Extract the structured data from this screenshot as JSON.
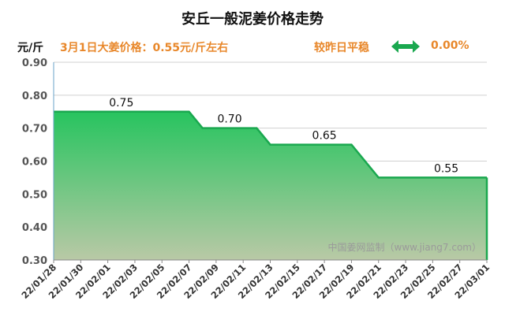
{
  "header": {
    "title": "安丘一般泥姜价格走势",
    "unit": "元/斤",
    "today_text": "3月1日大姜价格：0.55元/斤左右",
    "trend_text": "较昨日平稳",
    "trend_value": "0.00%",
    "trend_icon": "double-arrow-icon",
    "accent_color": "#e8872a",
    "arrow_color": "#1aa84f"
  },
  "watermark": "中国姜网监制（www.jiang7.com）",
  "chart_data": {
    "type": "area",
    "title": "安丘一般泥姜价格走势",
    "ylabel": "元/斤",
    "xlabel": "",
    "ylim": [
      0.3,
      0.9
    ],
    "yticks": [
      "0.30",
      "0.40",
      "0.50",
      "0.60",
      "0.70",
      "0.80",
      "0.90"
    ],
    "xticks": [
      "22/01/28",
      "22/01/30",
      "22/02/01",
      "22/02/03",
      "22/02/05",
      "22/02/07",
      "22/02/09",
      "22/02/11",
      "22/02/13",
      "22/02/15",
      "22/02/17",
      "22/02/19",
      "22/02/21",
      "22/02/23",
      "22/02/25",
      "22/02/27",
      "22/03/01"
    ],
    "grid": true,
    "series": [
      {
        "points": [
          [
            "22/01/28",
            0.75
          ],
          [
            "22/02/07",
            0.75
          ],
          [
            "22/02/08",
            0.7
          ],
          [
            "22/02/12",
            0.7
          ],
          [
            "22/02/13",
            0.65
          ],
          [
            "22/02/19",
            0.65
          ],
          [
            "22/02/21",
            0.55
          ],
          [
            "22/03/01",
            0.55
          ]
        ],
        "line_color": "#1aa84f",
        "fill_top_color": "#27c45f",
        "fill_bottom_color": "#b9c9a6"
      }
    ],
    "data_labels": [
      {
        "x": "22/02/02",
        "value": "0.75"
      },
      {
        "x": "22/02/10",
        "value": "0.70"
      },
      {
        "x": "22/02/17",
        "value": "0.65"
      },
      {
        "x": "22/02/26",
        "value": "0.55"
      }
    ]
  }
}
